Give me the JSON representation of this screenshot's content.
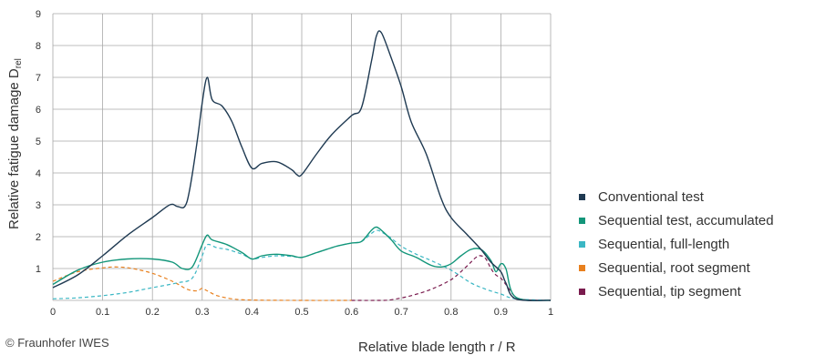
{
  "chart_data": {
    "type": "line",
    "xlabel": "Relative blade length  r / R",
    "ylabel_main": "Relative fatigue damage  D",
    "ylabel_sub": "rel",
    "xlim": [
      0,
      1
    ],
    "ylim": [
      0,
      9
    ],
    "xticks": [
      "0",
      "0.1",
      "0.2",
      "0.3",
      "0.4",
      "0.5",
      "0.6",
      "0.7",
      "0.8",
      "0.9",
      "1"
    ],
    "yticks": [
      "",
      "1",
      "2",
      "3",
      "4",
      "5",
      "6",
      "7",
      "8",
      "9"
    ],
    "grid": true,
    "legend_position": "right",
    "series": [
      {
        "name": "Conventional test",
        "color": "#1f3a52",
        "style": "solid",
        "points": [
          [
            0,
            0.4
          ],
          [
            0.05,
            0.8
          ],
          [
            0.1,
            1.4
          ],
          [
            0.15,
            2.05
          ],
          [
            0.2,
            2.6
          ],
          [
            0.235,
            3.0
          ],
          [
            0.25,
            2.95
          ],
          [
            0.265,
            2.95
          ],
          [
            0.275,
            3.5
          ],
          [
            0.29,
            5.0
          ],
          [
            0.3,
            6.2
          ],
          [
            0.31,
            7.0
          ],
          [
            0.32,
            6.3
          ],
          [
            0.34,
            6.1
          ],
          [
            0.36,
            5.6
          ],
          [
            0.38,
            4.8
          ],
          [
            0.4,
            4.15
          ],
          [
            0.42,
            4.3
          ],
          [
            0.45,
            4.35
          ],
          [
            0.48,
            4.1
          ],
          [
            0.49,
            3.95
          ],
          [
            0.5,
            3.95
          ],
          [
            0.53,
            4.6
          ],
          [
            0.56,
            5.2
          ],
          [
            0.6,
            5.8
          ],
          [
            0.62,
            6.05
          ],
          [
            0.64,
            7.5
          ],
          [
            0.65,
            8.3
          ],
          [
            0.66,
            8.4
          ],
          [
            0.68,
            7.6
          ],
          [
            0.7,
            6.7
          ],
          [
            0.72,
            5.6
          ],
          [
            0.75,
            4.6
          ],
          [
            0.78,
            3.2
          ],
          [
            0.8,
            2.6
          ],
          [
            0.83,
            2.1
          ],
          [
            0.86,
            1.6
          ],
          [
            0.88,
            1.2
          ],
          [
            0.9,
            0.9
          ],
          [
            0.91,
            0.55
          ],
          [
            0.93,
            0.05
          ],
          [
            1.0,
            0.0
          ]
        ]
      },
      {
        "name": "Sequential test, accumulated",
        "color": "#13967a",
        "style": "solid",
        "points": [
          [
            0,
            0.5
          ],
          [
            0.05,
            0.95
          ],
          [
            0.1,
            1.2
          ],
          [
            0.15,
            1.3
          ],
          [
            0.2,
            1.3
          ],
          [
            0.24,
            1.2
          ],
          [
            0.26,
            1.0
          ],
          [
            0.28,
            1.05
          ],
          [
            0.3,
            1.75
          ],
          [
            0.31,
            2.05
          ],
          [
            0.32,
            1.9
          ],
          [
            0.35,
            1.75
          ],
          [
            0.38,
            1.5
          ],
          [
            0.4,
            1.3
          ],
          [
            0.42,
            1.4
          ],
          [
            0.45,
            1.45
          ],
          [
            0.48,
            1.4
          ],
          [
            0.5,
            1.35
          ],
          [
            0.53,
            1.5
          ],
          [
            0.57,
            1.7
          ],
          [
            0.6,
            1.8
          ],
          [
            0.62,
            1.85
          ],
          [
            0.64,
            2.2
          ],
          [
            0.65,
            2.3
          ],
          [
            0.66,
            2.2
          ],
          [
            0.68,
            1.9
          ],
          [
            0.7,
            1.55
          ],
          [
            0.73,
            1.35
          ],
          [
            0.76,
            1.1
          ],
          [
            0.78,
            1.05
          ],
          [
            0.8,
            1.15
          ],
          [
            0.82,
            1.4
          ],
          [
            0.84,
            1.6
          ],
          [
            0.86,
            1.6
          ],
          [
            0.88,
            1.25
          ],
          [
            0.89,
            0.9
          ],
          [
            0.9,
            1.15
          ],
          [
            0.91,
            1.0
          ],
          [
            0.93,
            0.1
          ],
          [
            1.0,
            0.0
          ]
        ]
      },
      {
        "name": "Sequential, full-length",
        "color": "#3bb7c4",
        "style": "dashed",
        "points": [
          [
            0,
            0.05
          ],
          [
            0.05,
            0.08
          ],
          [
            0.1,
            0.15
          ],
          [
            0.15,
            0.25
          ],
          [
            0.2,
            0.4
          ],
          [
            0.25,
            0.55
          ],
          [
            0.28,
            0.7
          ],
          [
            0.3,
            1.4
          ],
          [
            0.31,
            1.75
          ],
          [
            0.33,
            1.65
          ],
          [
            0.35,
            1.6
          ],
          [
            0.38,
            1.45
          ],
          [
            0.4,
            1.3
          ],
          [
            0.42,
            1.35
          ],
          [
            0.45,
            1.4
          ],
          [
            0.48,
            1.38
          ],
          [
            0.5,
            1.35
          ],
          [
            0.53,
            1.5
          ],
          [
            0.57,
            1.7
          ],
          [
            0.6,
            1.8
          ],
          [
            0.62,
            1.85
          ],
          [
            0.64,
            2.1
          ],
          [
            0.65,
            2.2
          ],
          [
            0.66,
            2.15
          ],
          [
            0.68,
            1.95
          ],
          [
            0.7,
            1.7
          ],
          [
            0.73,
            1.45
          ],
          [
            0.76,
            1.25
          ],
          [
            0.8,
            0.95
          ],
          [
            0.84,
            0.55
          ],
          [
            0.87,
            0.35
          ],
          [
            0.9,
            0.2
          ],
          [
            0.93,
            0.05
          ],
          [
            1.0,
            0.0
          ]
        ]
      },
      {
        "name": "Sequential, root segment",
        "color": "#e8801e",
        "style": "dashed",
        "points": [
          [
            0,
            0.6
          ],
          [
            0.05,
            0.9
          ],
          [
            0.1,
            1.02
          ],
          [
            0.13,
            1.05
          ],
          [
            0.16,
            1.0
          ],
          [
            0.2,
            0.85
          ],
          [
            0.24,
            0.6
          ],
          [
            0.27,
            0.35
          ],
          [
            0.29,
            0.3
          ],
          [
            0.3,
            0.38
          ],
          [
            0.31,
            0.3
          ],
          [
            0.33,
            0.15
          ],
          [
            0.36,
            0.05
          ],
          [
            0.4,
            0.01
          ],
          [
            0.5,
            0.0
          ],
          [
            0.6,
            0.0
          ]
        ]
      },
      {
        "name": "Sequential, tip segment",
        "color": "#7a1b4e",
        "style": "dashed",
        "points": [
          [
            0.6,
            0.0
          ],
          [
            0.65,
            0.0
          ],
          [
            0.68,
            0.02
          ],
          [
            0.72,
            0.15
          ],
          [
            0.76,
            0.35
          ],
          [
            0.8,
            0.65
          ],
          [
            0.83,
            1.05
          ],
          [
            0.85,
            1.35
          ],
          [
            0.86,
            1.4
          ],
          [
            0.87,
            1.3
          ],
          [
            0.88,
            1.0
          ],
          [
            0.89,
            0.8
          ],
          [
            0.9,
            0.7
          ],
          [
            0.91,
            0.5
          ],
          [
            0.93,
            0.1
          ],
          [
            0.95,
            0.02
          ],
          [
            1.0,
            0.0
          ]
        ]
      }
    ]
  },
  "credit": "© Fraunhofer IWES"
}
